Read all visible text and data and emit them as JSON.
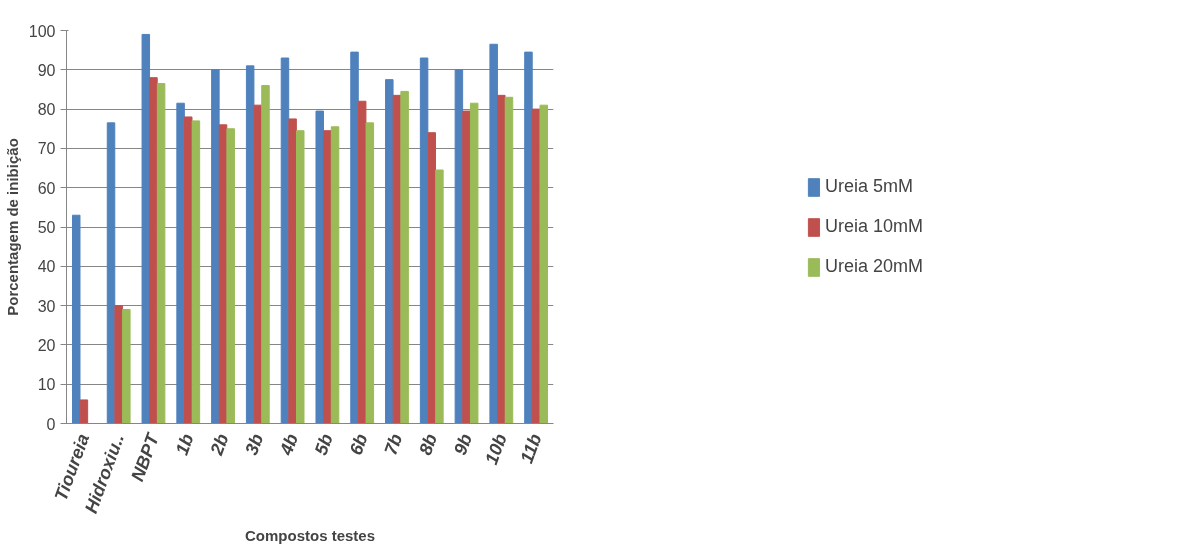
{
  "chart_data": {
    "type": "bar",
    "xlabel": "Compostos testes",
    "ylabel": "Porcentagem de inibição",
    "categories": [
      "Tioureia",
      "Hidroxiu..",
      "NBPT",
      "1b",
      "2b",
      "3b",
      "4b",
      "5b",
      "6b",
      "7b",
      "8b",
      "9b",
      "10b",
      "11b"
    ],
    "series": [
      {
        "name": "Ureia 5mM",
        "color": "#4f81bd",
        "values": [
          53,
          76.5,
          99,
          81.5,
          90,
          91,
          93,
          79.5,
          94.5,
          87.5,
          93,
          90,
          96.5,
          94.5
        ]
      },
      {
        "name": "Ureia 10mM",
        "color": "#c0504d",
        "values": [
          6,
          30,
          88,
          78,
          76,
          81,
          77.5,
          74.5,
          82,
          83.5,
          74,
          79.5,
          83.5,
          80
        ]
      },
      {
        "name": "Ureia 20mM",
        "color": "#9bbb59",
        "values": [
          null,
          29,
          86.5,
          77,
          75,
          86,
          74.5,
          75.5,
          76.5,
          84.5,
          64.5,
          81.5,
          83,
          81
        ]
      }
    ],
    "ylim": [
      0,
      100
    ],
    "yticks": [
      0,
      10,
      20,
      30,
      40,
      50,
      60,
      70,
      80,
      90,
      100
    ],
    "grid": "y",
    "legend": "right"
  }
}
